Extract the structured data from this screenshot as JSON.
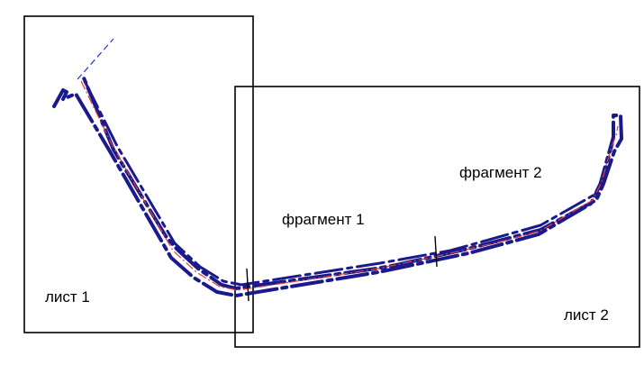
{
  "labels": {
    "sheet1": "лист 1",
    "sheet2": "лист 2",
    "fragment1": "фрагмент 1",
    "fragment2": "фрагмент 2"
  },
  "colors": {
    "frame": "#000000",
    "contour": "#1a1a8c",
    "axis": "#e83a3a",
    "extension": "#2233cc"
  }
}
